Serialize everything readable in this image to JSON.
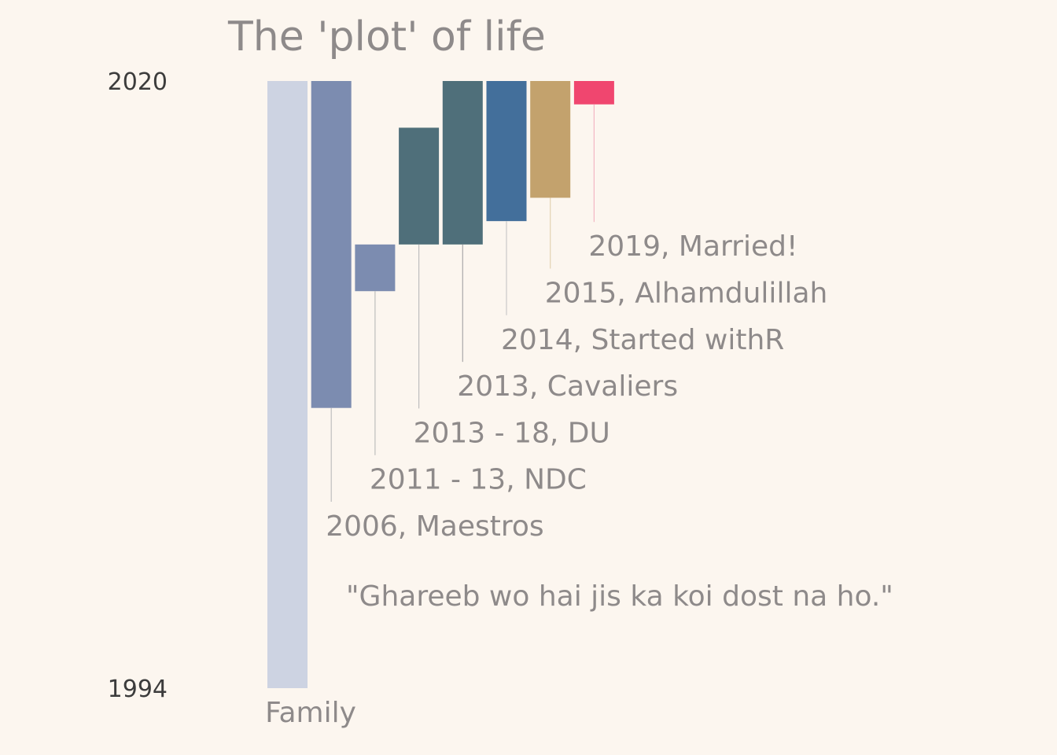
{
  "chart_data": {
    "type": "bar",
    "title": "The 'plot' of life",
    "subtitle": "",
    "xlabel": "",
    "ylabel": "",
    "ylim": [
      1994,
      2020
    ],
    "yticks": [
      1994,
      2020
    ],
    "grid": false,
    "legend": "none",
    "bars": [
      {
        "start": 1994,
        "end": 2020,
        "color": "#CDD3E2"
      },
      {
        "start": 2006,
        "end": 2020,
        "color": "#7C8CB0"
      },
      {
        "start": 2011,
        "end": 2013,
        "color": "#7C8CB0"
      },
      {
        "start": 2013,
        "end": 2018,
        "color": "#4F6F7A"
      },
      {
        "start": 2013,
        "end": 2020,
        "color": "#4F6F7A"
      },
      {
        "start": 2014,
        "end": 2020,
        "color": "#436F9B"
      },
      {
        "start": 2015,
        "end": 2020,
        "color": "#C3A26D"
      },
      {
        "start": 2019,
        "end": 2020,
        "color": "#F0466F"
      }
    ],
    "annotations": [
      {
        "bar": 1,
        "text": "2006, Maestros",
        "line_color": "#BEBEBE"
      },
      {
        "bar": 2,
        "text": "2011 - 13, NDC",
        "line_color": "#BEBEBE"
      },
      {
        "bar": 3,
        "text": "2013 - 18, DU",
        "line_color": "#BEBEBE"
      },
      {
        "bar": 4,
        "text": "2013, Cavaliers",
        "line_color": "#A9A9A9"
      },
      {
        "bar": 5,
        "text": "2014, Started withR",
        "line_color": "#C9C9C9"
      },
      {
        "bar": 6,
        "text": "2015, Alhamdulillah",
        "line_color": "#E3D2B1"
      },
      {
        "bar": 7,
        "text": "2019, Married!",
        "line_color": "#F3B6C3"
      }
    ],
    "category_label": "Family",
    "quote": "\"Ghareeb wo hai jis ka koi dost na ho.\"",
    "colors": {
      "background": "#FCF6EF",
      "title": "#8E8A8A",
      "annotation_text": "#8E8A8A",
      "tick_text": "#3C3C3C"
    }
  }
}
